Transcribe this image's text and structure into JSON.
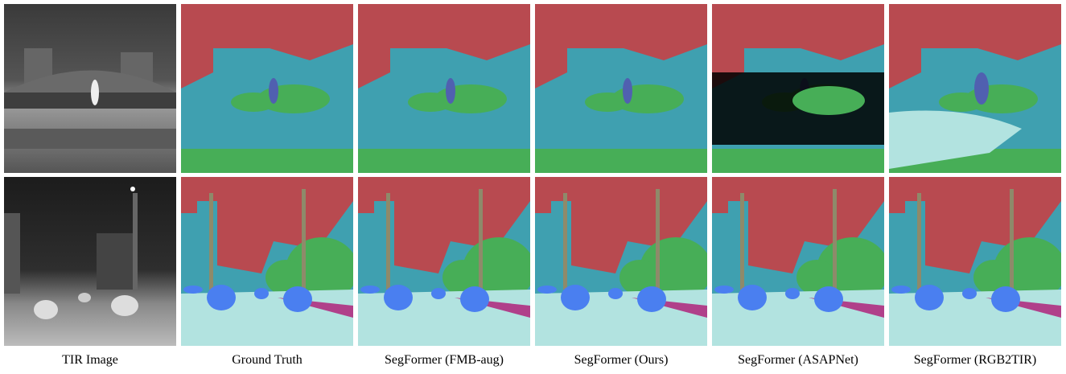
{
  "figure": {
    "captions": [
      "TIR Image",
      "Ground Truth",
      "SegFormer (FMB-aug)",
      "SegFormer (Ours)",
      "SegFormer (ASAPNet)",
      "SegFormer (RGB2TIR)"
    ]
  }
}
